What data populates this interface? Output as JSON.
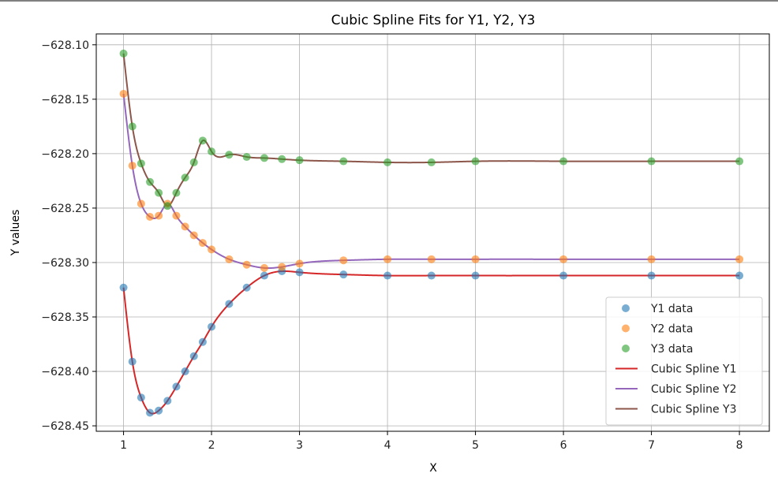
{
  "chart_data": {
    "type": "line",
    "title": "Cubic Spline Fits for Y1, Y2, Y3",
    "xlabel": "X",
    "ylabel": "Y values",
    "xlim": [
      0.69,
      8.34
    ],
    "ylim": [
      -628.455,
      -628.09
    ],
    "xticks": [
      1,
      2,
      3,
      4,
      5,
      6,
      7,
      8
    ],
    "xtick_labels": [
      "1",
      "2",
      "3",
      "4",
      "5",
      "6",
      "7",
      "8"
    ],
    "yticks": [
      -628.1,
      -628.15,
      -628.2,
      -628.25,
      -628.3,
      -628.35,
      -628.4,
      -628.45
    ],
    "ytick_labels": [
      "−628.10",
      "−628.15",
      "−628.20",
      "−628.25",
      "−628.30",
      "−628.35",
      "−628.40",
      "−628.45"
    ],
    "grid": true,
    "legend_position": "lower-right",
    "x": [
      1.0,
      1.1,
      1.2,
      1.3,
      1.4,
      1.5,
      1.6,
      1.7,
      1.8,
      1.9,
      2.0,
      2.2,
      2.4,
      2.6,
      2.8,
      3.0,
      3.5,
      4.0,
      4.5,
      5.0,
      6.0,
      7.0,
      8.0
    ],
    "scatter_series": [
      {
        "name": "Y1 data",
        "color": "#1f77b4",
        "values": [
          -628.323,
          -628.391,
          -628.424,
          -628.438,
          -628.436,
          -628.427,
          -628.414,
          -628.4,
          -628.386,
          -628.373,
          -628.359,
          -628.338,
          -628.323,
          -628.312,
          -628.308,
          -628.309,
          -628.311,
          -628.312,
          -628.312,
          -628.312,
          -628.312,
          -628.312,
          -628.312
        ]
      },
      {
        "name": "Y2 data",
        "color": "#ff7f0e",
        "values": [
          -628.145,
          -628.211,
          -628.246,
          -628.258,
          -628.257,
          -628.246,
          -628.257,
          -628.267,
          -628.275,
          -628.282,
          -628.288,
          -628.297,
          -628.302,
          -628.305,
          -628.304,
          -628.301,
          -628.298,
          -628.297,
          -628.297,
          -628.297,
          -628.297,
          -628.297,
          -628.297
        ]
      },
      {
        "name": "Y3 data",
        "color": "#2ca02c",
        "values": [
          -628.108,
          -628.175,
          -628.209,
          -628.226,
          -628.236,
          -628.248,
          -628.236,
          -628.222,
          -628.208,
          -628.188,
          -628.198,
          -628.201,
          -628.203,
          -628.204,
          -628.205,
          -628.206,
          -628.207,
          -628.208,
          -628.208,
          -628.207,
          -628.207,
          -628.207,
          -628.207
        ]
      }
    ],
    "line_series": [
      {
        "name": "Cubic Spline Y1",
        "color": "#d62728",
        "fit_of": 0
      },
      {
        "name": "Cubic Spline Y2",
        "color": "#9467bd",
        "fit_of": 1
      },
      {
        "name": "Cubic Spline Y3",
        "color": "#8c564b",
        "fit_of": 2
      }
    ]
  }
}
